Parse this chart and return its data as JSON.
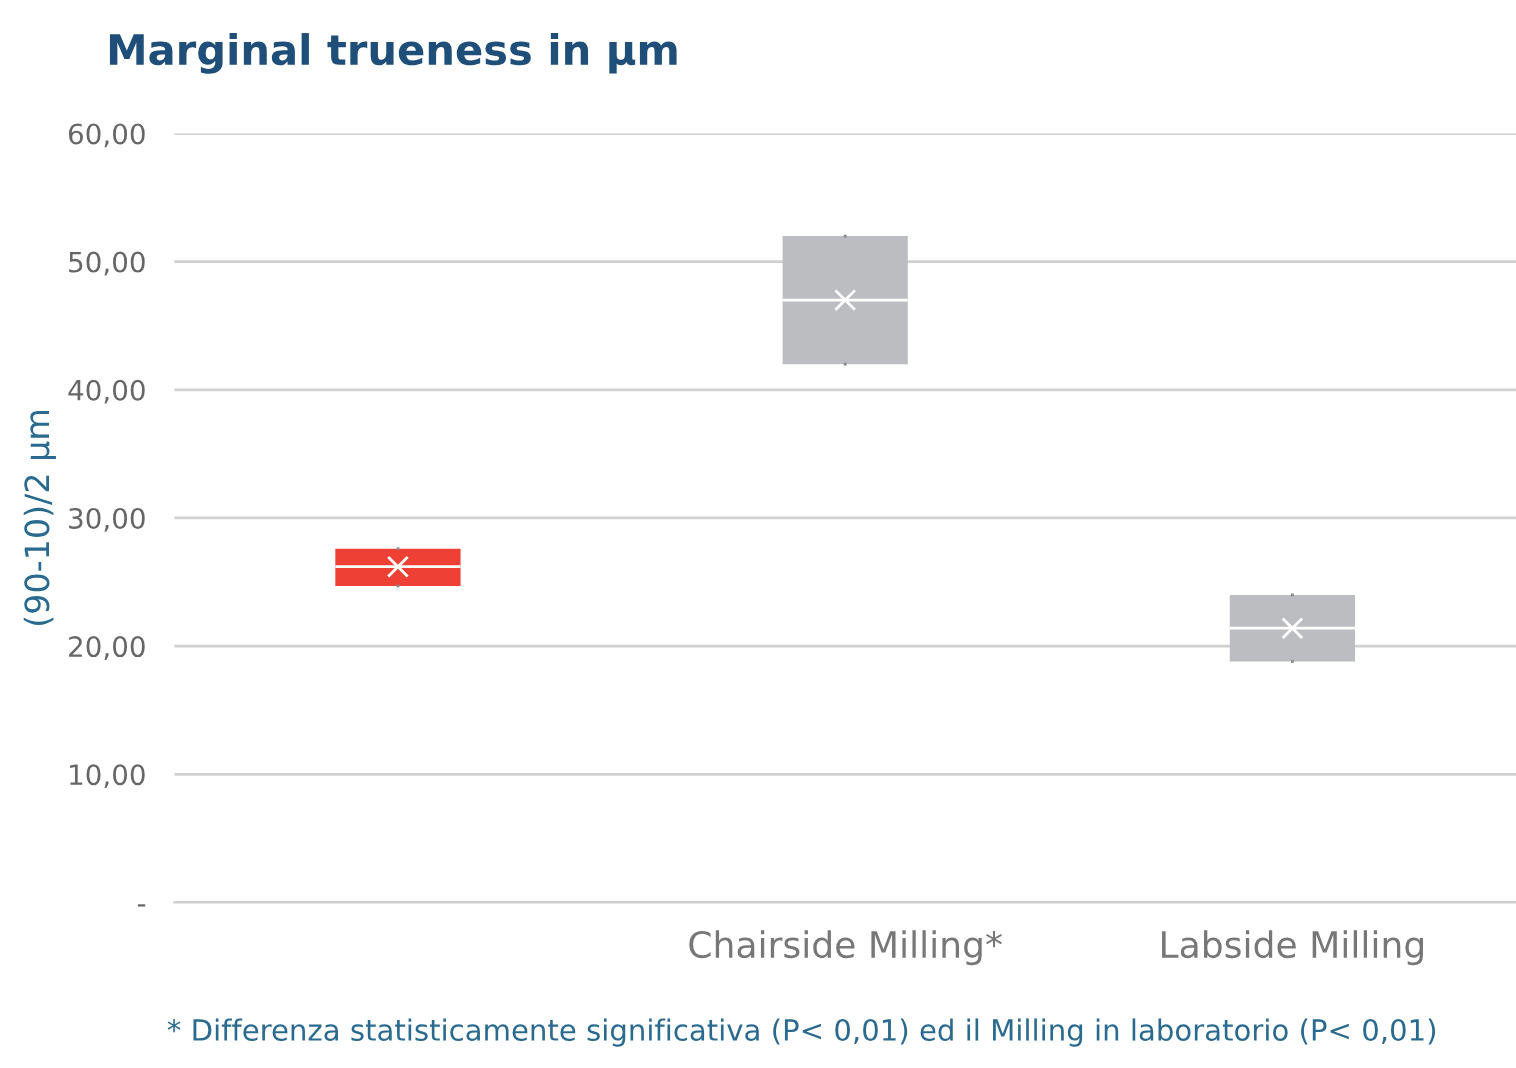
{
  "chart_data": {
    "type": "box",
    "title": "Marginal trueness in µm",
    "ylabel": "(90-10)/2 µm",
    "categories": [
      null,
      "Chairside Milling*",
      "Labside Milling"
    ],
    "colors": [
      "#ee4035",
      "#bcbdc0",
      "#bcbdc0"
    ],
    "boxes": [
      {
        "low": 24.7,
        "q1": 24.7,
        "median": 26.2,
        "q3": 27.6,
        "high": 27.6,
        "mean": 26.2
      },
      {
        "low": 42,
        "q1": 42,
        "median": 47,
        "q3": 52,
        "high": 52,
        "mean": 47
      },
      {
        "low": 18.8,
        "q1": 18.8,
        "median": 21.4,
        "q3": 24,
        "high": 24,
        "mean": 21.4
      }
    ],
    "ylim": [
      0,
      60
    ],
    "yticks": [
      {
        "value": 0,
        "label": "-"
      },
      {
        "value": 10,
        "label": "10,00"
      },
      {
        "value": 20,
        "label": "20,00"
      },
      {
        "value": 30,
        "label": "30,00"
      },
      {
        "value": 40,
        "label": "40,00"
      },
      {
        "value": 50,
        "label": "50,00"
      },
      {
        "value": 60,
        "label": "60,00"
      }
    ],
    "grid": "y",
    "marker": "cross",
    "annotations": [
      "* Differenza statisticamente significativa (P< 0,01) ed il Milling in laboratorio (P< 0,01)"
    ]
  }
}
